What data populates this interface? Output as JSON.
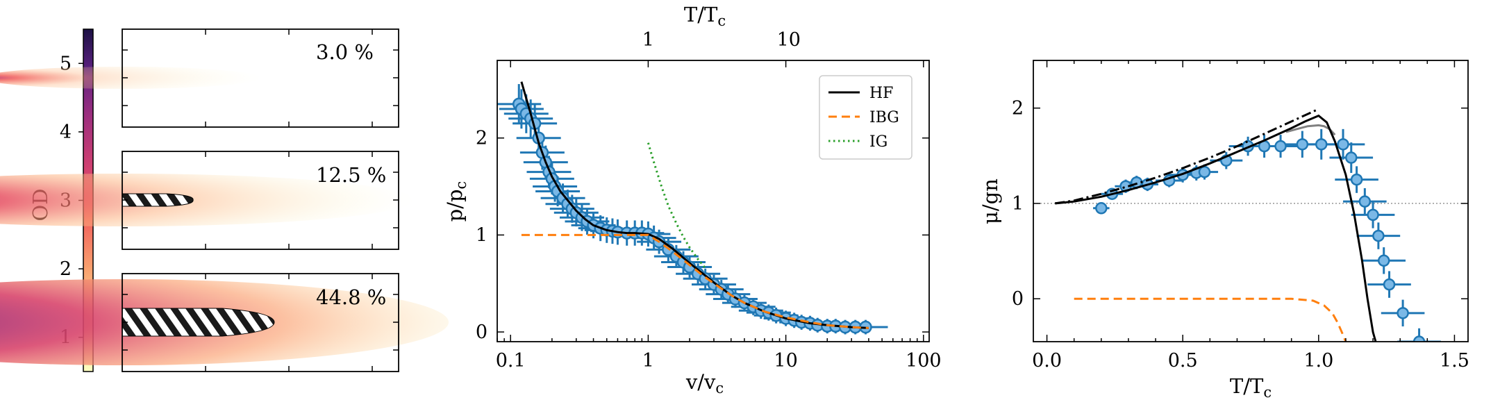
{
  "colorbar": {
    "label": "OD",
    "ticks": [
      "1",
      "2",
      "3",
      "4",
      "5"
    ],
    "range": [
      0.5,
      5.5
    ],
    "colormap": "magma_r"
  },
  "images": [
    {
      "label": "3.0 %"
    },
    {
      "label": "12.5 %"
    },
    {
      "label": "44.8 %"
    }
  ],
  "chart_data": [
    {
      "type": "scatter",
      "xlabel": "v/v_c",
      "ylabel": "p/p_c",
      "top_xlabel": "T/T_c",
      "xscale": "log",
      "xlim": [
        0.08,
        110
      ],
      "ylim": [
        -0.1,
        2.8
      ],
      "xticks": [
        "0.1",
        "1",
        "10",
        "100"
      ],
      "yticks": [
        "0",
        "1",
        "2"
      ],
      "top_xticks": [
        "1",
        "10"
      ],
      "legend": {
        "placement": "top-right",
        "entries": [
          "HF",
          "IBG",
          "IG"
        ]
      },
      "series": [
        {
          "name": "HF",
          "style": "solid",
          "color": "#000000",
          "x": [
            0.12,
            0.14,
            0.16,
            0.18,
            0.2,
            0.23,
            0.27,
            0.3,
            0.35,
            0.4,
            0.5,
            0.6,
            0.7,
            0.8,
            1.0,
            1.2,
            1.5,
            2.0,
            2.5,
            3.0,
            4.0,
            5.0,
            7.0,
            10,
            15,
            20,
            30,
            40
          ],
          "y": [
            2.58,
            2.25,
            1.95,
            1.75,
            1.6,
            1.45,
            1.33,
            1.25,
            1.16,
            1.1,
            1.05,
            1.03,
            1.02,
            1.02,
            1.01,
            0.96,
            0.86,
            0.71,
            0.6,
            0.51,
            0.38,
            0.3,
            0.21,
            0.14,
            0.09,
            0.07,
            0.05,
            0.04
          ]
        },
        {
          "name": "IBG",
          "style": "dashed",
          "color": "#ff7f0e",
          "x": [
            0.12,
            0.3,
            0.6,
            0.9,
            1.0,
            1.2,
            1.5,
            2.0,
            2.5,
            3.0,
            4.0,
            5.0,
            7.0,
            10,
            15,
            20,
            30,
            40
          ],
          "y": [
            1.0,
            1.0,
            1.0,
            1.0,
            1.0,
            0.93,
            0.83,
            0.69,
            0.58,
            0.5,
            0.38,
            0.3,
            0.21,
            0.15,
            0.1,
            0.07,
            0.05,
            0.04
          ]
        },
        {
          "name": "IG",
          "style": "dotted",
          "color": "#2ca02c",
          "x": [
            1.0,
            1.1,
            1.25,
            1.4,
            1.6,
            1.8,
            2.0,
            2.3,
            2.6
          ],
          "y": [
            1.95,
            1.75,
            1.5,
            1.3,
            1.12,
            0.98,
            0.87,
            0.75,
            0.66
          ]
        },
        {
          "name": "data",
          "style": "markers",
          "color": "#1f77b4",
          "x": [
            0.115,
            0.12,
            0.13,
            0.14,
            0.15,
            0.16,
            0.17,
            0.18,
            0.19,
            0.2,
            0.21,
            0.22,
            0.24,
            0.26,
            0.28,
            0.3,
            0.33,
            0.36,
            0.4,
            0.45,
            0.5,
            0.55,
            0.6,
            0.7,
            0.8,
            0.9,
            1.0,
            1.1,
            1.2,
            1.4,
            1.6,
            1.8,
            2.0,
            2.3,
            2.6,
            3.0,
            3.4,
            3.8,
            4.3,
            5.0,
            5.8,
            6.6,
            7.5,
            8.5,
            10,
            11.5,
            13,
            15,
            17,
            20,
            23,
            27,
            32,
            38
          ],
          "y": [
            2.35,
            2.3,
            2.25,
            2.2,
            2.15,
            2.0,
            1.85,
            1.75,
            1.65,
            1.58,
            1.5,
            1.45,
            1.38,
            1.32,
            1.27,
            1.23,
            1.18,
            1.14,
            1.1,
            1.07,
            1.05,
            1.04,
            1.03,
            1.02,
            1.02,
            1.02,
            1.01,
            0.97,
            0.93,
            0.85,
            0.78,
            0.72,
            0.67,
            0.6,
            0.55,
            0.49,
            0.44,
            0.39,
            0.34,
            0.3,
            0.26,
            0.22,
            0.2,
            0.17,
            0.14,
            0.12,
            0.1,
            0.09,
            0.07,
            0.06,
            0.06,
            0.05,
            0.05,
            0.05
          ]
        }
      ]
    },
    {
      "type": "scatter",
      "xlabel": "T/T_c",
      "ylabel": "μ/gn",
      "xlim": [
        -0.05,
        1.55
      ],
      "ylim": [
        -0.45,
        2.5
      ],
      "xticks": [
        "0.0",
        "0.5",
        "1.0",
        "1.5"
      ],
      "yticks": [
        "0",
        "1",
        "2"
      ],
      "series": [
        {
          "name": "HF",
          "style": "solid",
          "color": "#000000",
          "x": [
            0.03,
            0.1,
            0.2,
            0.3,
            0.4,
            0.5,
            0.6,
            0.7,
            0.8,
            0.9,
            0.95,
            1.0,
            1.03,
            1.06,
            1.1,
            1.13,
            1.16,
            1.18,
            1.2,
            1.21
          ],
          "y": [
            1.0,
            1.02,
            1.07,
            1.14,
            1.22,
            1.31,
            1.42,
            1.54,
            1.66,
            1.79,
            1.86,
            1.92,
            1.85,
            1.65,
            1.3,
            0.9,
            0.4,
            0.0,
            -0.35,
            -0.45
          ]
        },
        {
          "name": "HF-dashdot",
          "style": "dashdot",
          "color": "#000000",
          "x": [
            0.03,
            0.1,
            0.2,
            0.3,
            0.4,
            0.5,
            0.6,
            0.7,
            0.8,
            0.9,
            1.0
          ],
          "y": [
            1.0,
            1.03,
            1.1,
            1.18,
            1.27,
            1.37,
            1.48,
            1.6,
            1.73,
            1.86,
            1.99
          ]
        },
        {
          "name": "gray",
          "style": "solid",
          "color": "#808080",
          "x": [
            0.88,
            0.92,
            0.96,
            1.0,
            1.02,
            1.04,
            1.06
          ],
          "y": [
            1.75,
            1.78,
            1.81,
            1.82,
            1.81,
            1.78,
            1.72
          ]
        },
        {
          "name": "IBG",
          "style": "dashed",
          "color": "#ff7f0e",
          "x": [
            0.1,
            0.5,
            0.9,
            0.98,
            1.02,
            1.05,
            1.07,
            1.09,
            1.1
          ],
          "y": [
            0.0,
            0.0,
            0.0,
            -0.02,
            -0.07,
            -0.15,
            -0.25,
            -0.38,
            -0.45
          ]
        },
        {
          "name": "data",
          "style": "markers",
          "color": "#1f77b4",
          "x": [
            0.2,
            0.24,
            0.29,
            0.33,
            0.37,
            0.45,
            0.5,
            0.55,
            0.58,
            0.66,
            0.74,
            0.8,
            0.86,
            0.94,
            1.01,
            1.09,
            1.12,
            1.14,
            1.17,
            1.2,
            1.22,
            1.24,
            1.26,
            1.31,
            1.37
          ],
          "y": [
            0.95,
            1.1,
            1.18,
            1.22,
            1.2,
            1.24,
            1.3,
            1.32,
            1.33,
            1.45,
            1.6,
            1.6,
            1.6,
            1.62,
            1.62,
            1.62,
            1.48,
            1.25,
            1.02,
            0.88,
            0.66,
            0.4,
            0.15,
            -0.15,
            -0.45
          ],
          "xerr": [
            0.03,
            0.04,
            0.04,
            0.04,
            0.04,
            0.05,
            0.05,
            0.05,
            0.05,
            0.06,
            0.07,
            0.07,
            0.07,
            0.07,
            0.08,
            0.08,
            0.08,
            0.08,
            0.08,
            0.08,
            0.08,
            0.08,
            0.08,
            0.08,
            0.08
          ],
          "yerr": [
            0.05,
            0.06,
            0.07,
            0.07,
            0.07,
            0.07,
            0.08,
            0.08,
            0.08,
            0.09,
            0.1,
            0.12,
            0.12,
            0.14,
            0.16,
            0.16,
            0.16,
            0.14,
            0.14,
            0.14,
            0.14,
            0.14,
            0.14,
            0.14,
            0.14
          ]
        },
        {
          "name": "reference-1",
          "style": "dotted",
          "color": "#808080",
          "x": [
            -0.05,
            1.55
          ],
          "y": [
            1.0,
            1.0
          ]
        }
      ]
    }
  ]
}
